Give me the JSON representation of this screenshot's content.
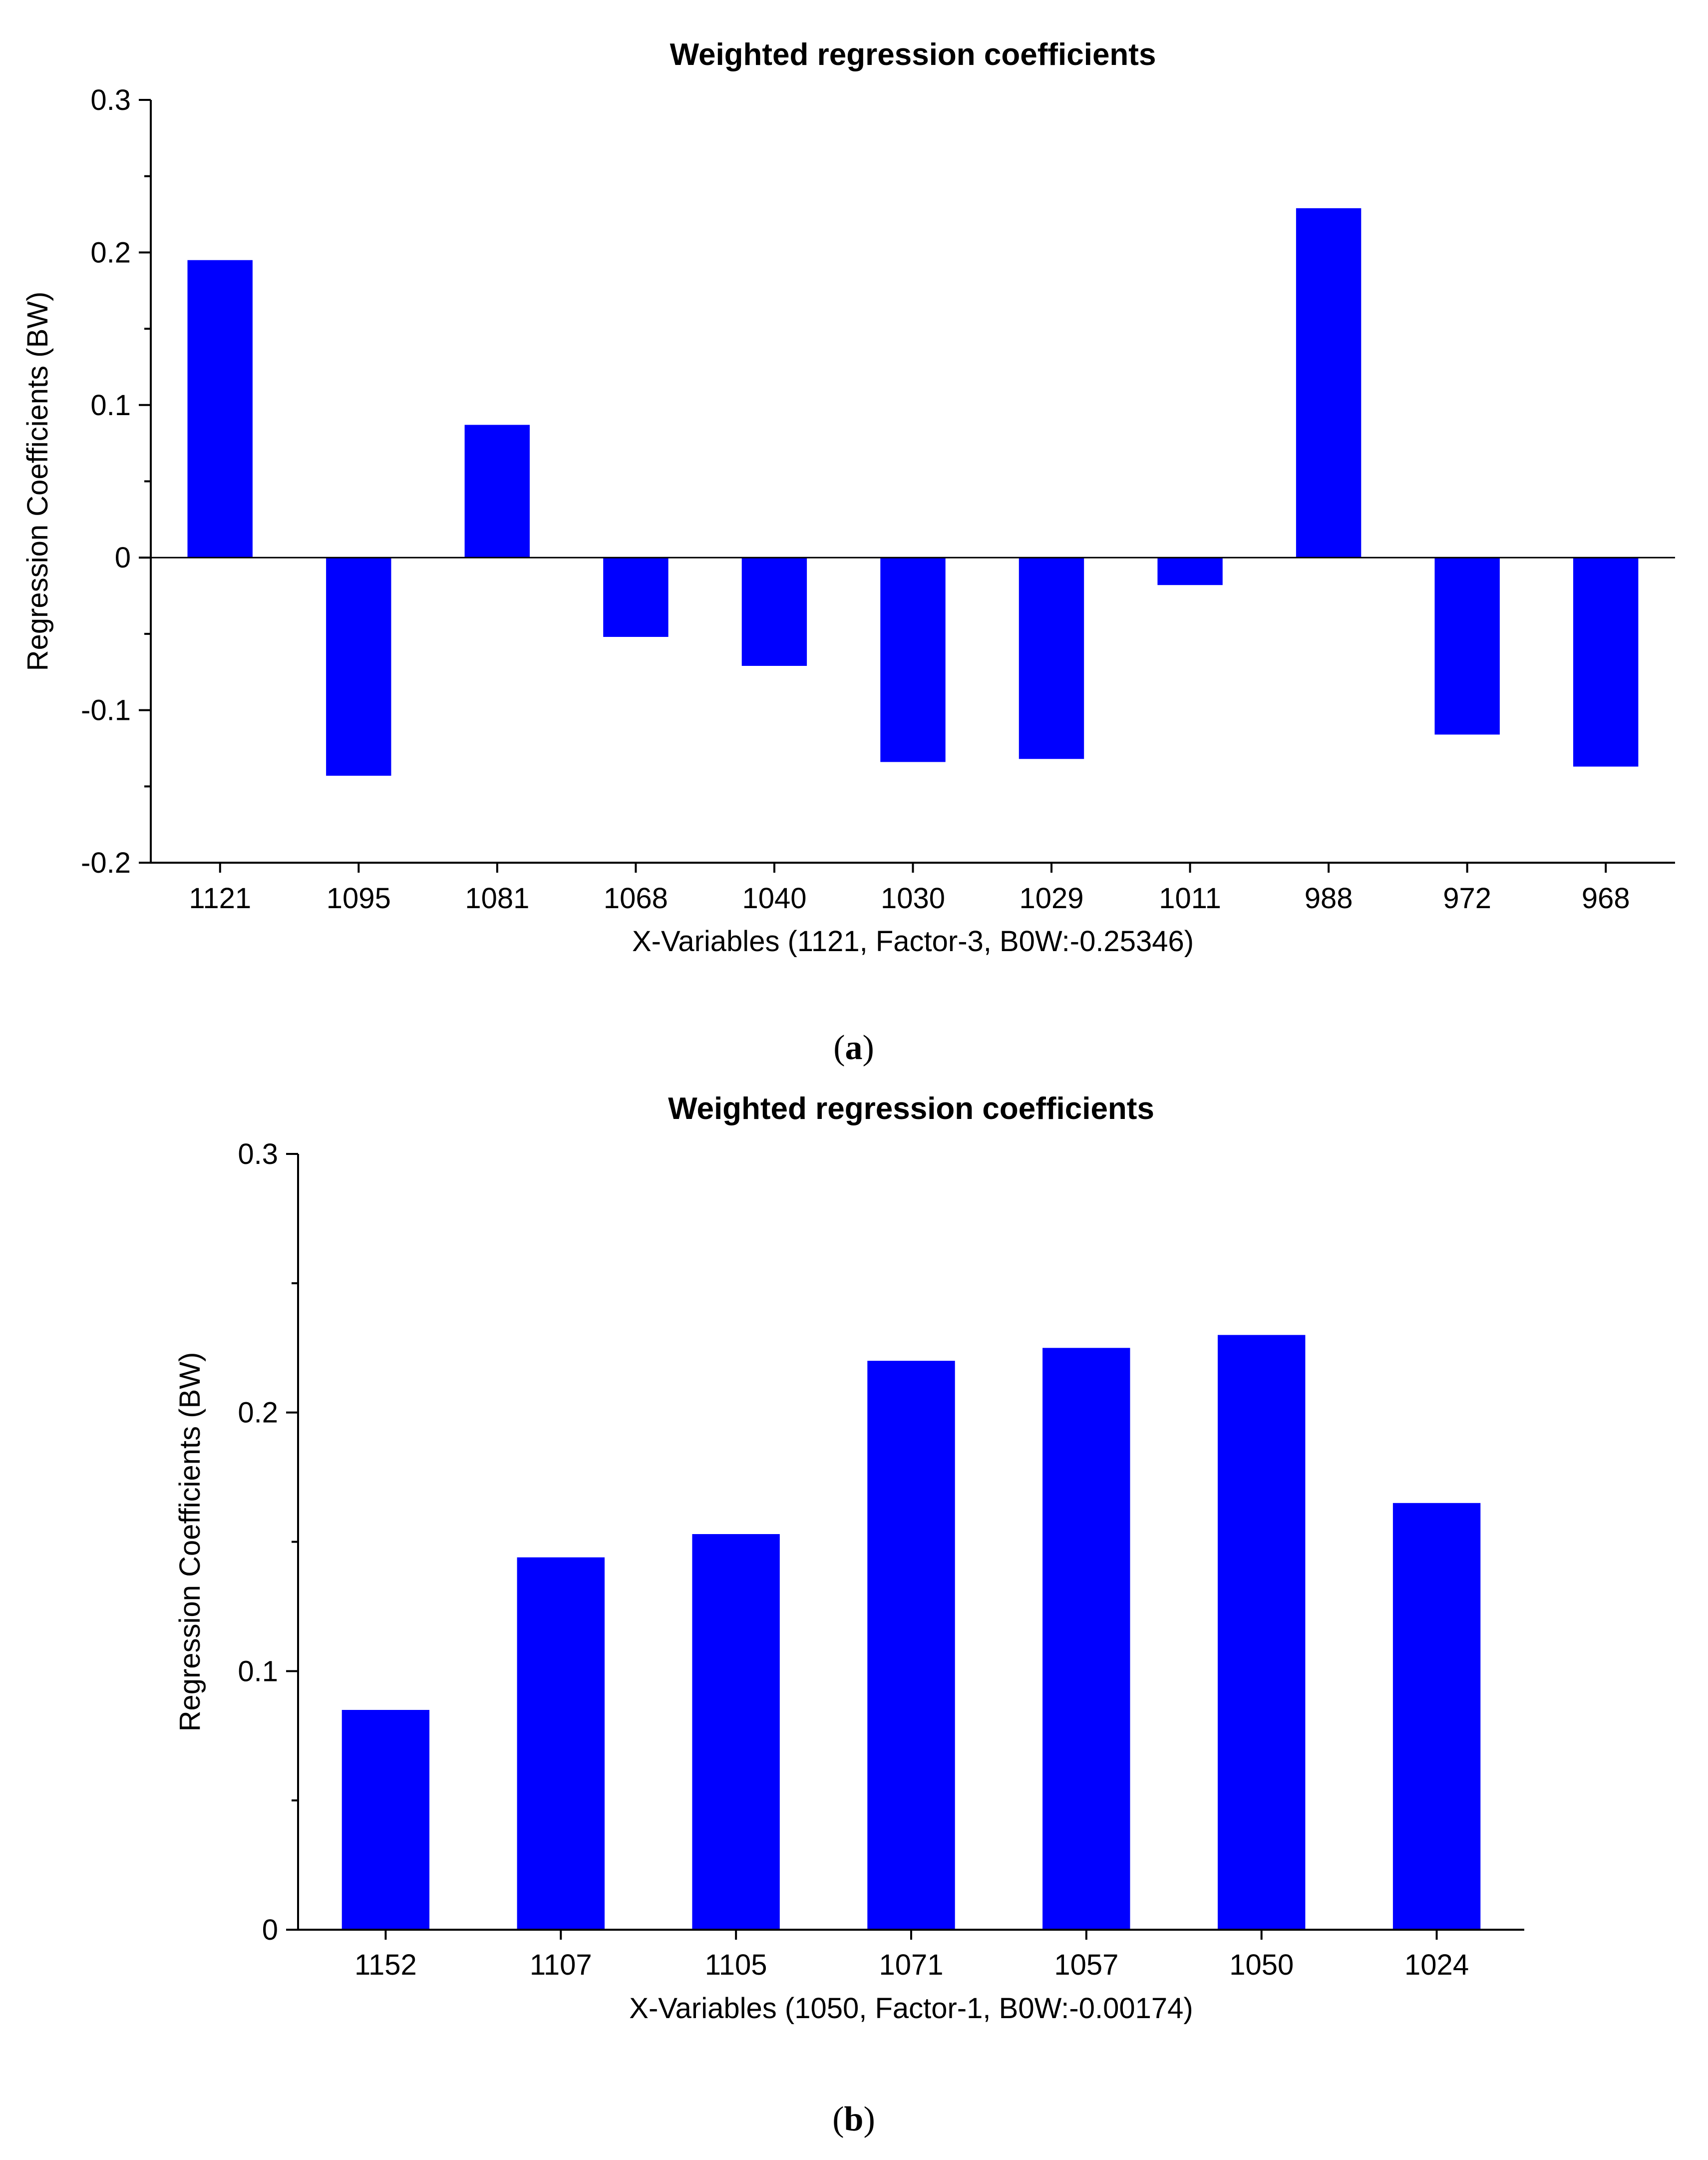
{
  "figure": {
    "bar_color": "#0000ff",
    "axis_color": "#000000"
  },
  "chart_data": [
    {
      "type": "bar",
      "panel_label": "a",
      "title": "Weighted regression coefficients",
      "xlabel": "X-Variables (1121, Factor-3, B0W:-0.25346)",
      "ylabel": "Regression Coefficients (BW)",
      "ylim": [
        -0.2,
        0.3
      ],
      "yticks": [
        -0.2,
        -0.1,
        0,
        0.1,
        0.2,
        0.3
      ],
      "ytick_labels": [
        "-0.2",
        "-0.1",
        "0",
        "0.1",
        "0.2",
        "0.3"
      ],
      "minor_step": 0.05,
      "zero_line": true,
      "categories": [
        "1121",
        "1095",
        "1081",
        "1068",
        "1040",
        "1030",
        "1029",
        "1011",
        "988",
        "972",
        "968"
      ],
      "values": [
        0.195,
        -0.143,
        0.087,
        -0.052,
        -0.071,
        -0.134,
        -0.132,
        -0.018,
        0.229,
        -0.116,
        -0.137
      ]
    },
    {
      "type": "bar",
      "panel_label": "b",
      "title": "Weighted regression coefficients",
      "xlabel": "X-Variables (1050, Factor-1, B0W:-0.00174)",
      "ylabel": "Regression Coefficients (BW)",
      "ylim": [
        0,
        0.3
      ],
      "yticks": [
        0,
        0.1,
        0.2,
        0.3
      ],
      "ytick_labels": [
        "0",
        "0.1",
        "0.2",
        "0.3"
      ],
      "minor_step": 0.05,
      "zero_line": false,
      "categories": [
        "1152",
        "1107",
        "1105",
        "1071",
        "1057",
        "1050",
        "1024"
      ],
      "values": [
        0.085,
        0.144,
        0.153,
        0.22,
        0.225,
        0.23,
        0.165
      ]
    }
  ]
}
